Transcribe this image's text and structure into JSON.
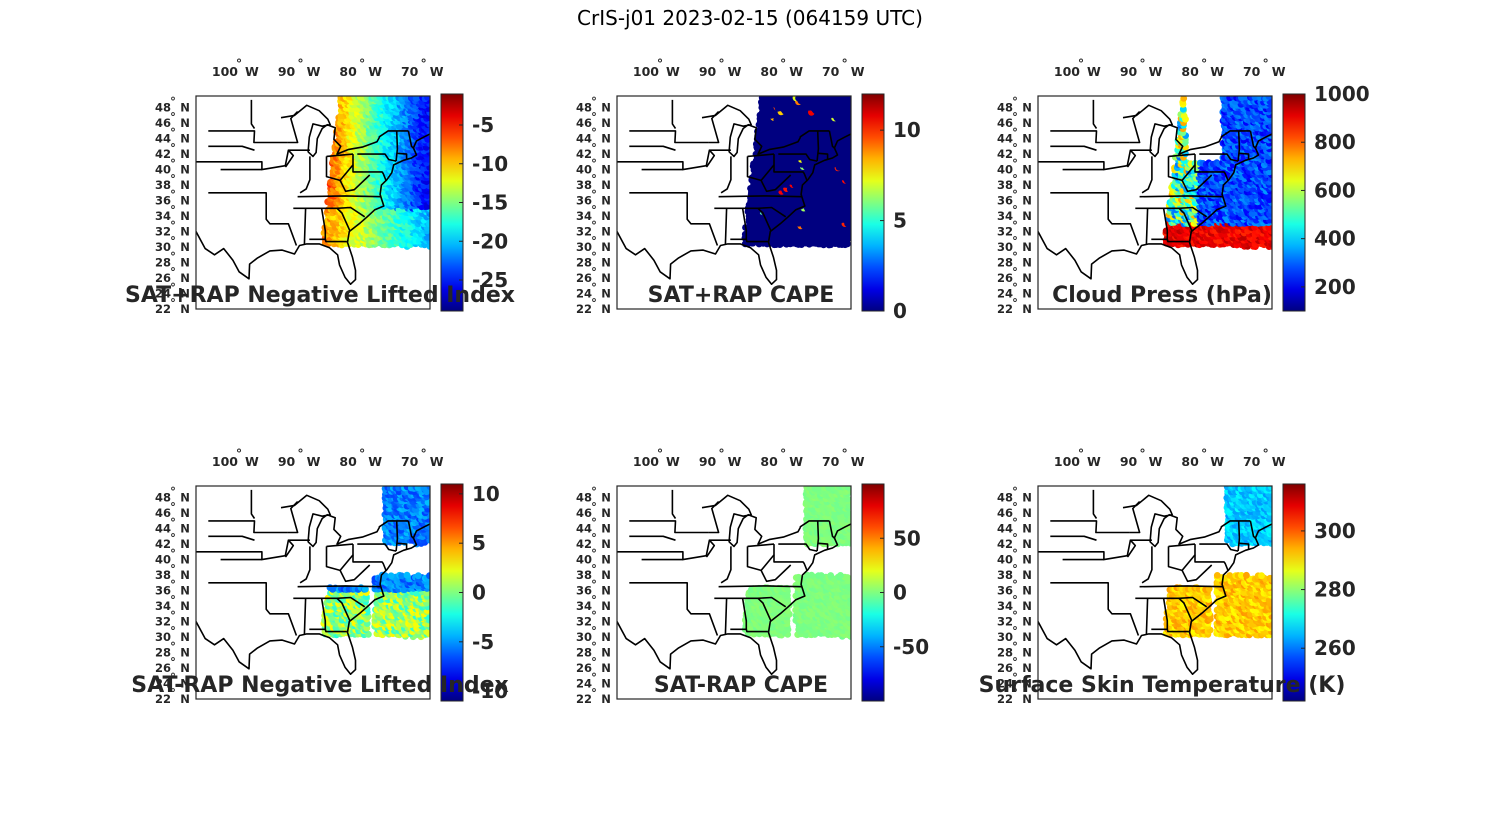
{
  "title": "CrIS-j01 2023-02-15 (064159 UTC)",
  "map_extent": {
    "lon": [
      -106,
      -68
    ],
    "lat": [
      22,
      49.5
    ]
  },
  "lon_labels": [
    "100",
    "90",
    "80",
    "70"
  ],
  "lon_values": [
    -100,
    -90,
    -80,
    -70
  ],
  "lat_labels": [
    "48",
    "46",
    "44",
    "42",
    "40",
    "38",
    "36",
    "34",
    "32",
    "30",
    "28",
    "26",
    "24",
    "22"
  ],
  "lat_values": [
    48,
    46,
    44,
    42,
    40,
    38,
    36,
    34,
    32,
    30,
    28,
    26,
    24,
    22
  ],
  "lon_suffix": "W",
  "lat_suffix": "N",
  "degree_mark": "°",
  "colormap": "jet",
  "panels": [
    {
      "id": "sat-rap-plus-li",
      "title": "SAT+RAP Negative Lifted Index",
      "colorbar": {
        "min": -29,
        "max": -1,
        "ticks": [
          -25,
          -20,
          -15,
          -10,
          -5
        ],
        "tick_labels": [
          "-25",
          "-20",
          "-15",
          "-10",
          "-5"
        ]
      },
      "field": "li_plus",
      "coverage": "swath"
    },
    {
      "id": "sat-rap-plus-cape",
      "title": "SAT+RAP CAPE",
      "colorbar": {
        "min": 0,
        "max": 12,
        "ticks": [
          0,
          5,
          10
        ],
        "tick_labels": [
          "0",
          "5",
          "10"
        ]
      },
      "field": "cape_plus",
      "coverage": "swath"
    },
    {
      "id": "cloud-press",
      "title": "Cloud Press (hPa)",
      "colorbar": {
        "min": 100,
        "max": 1000,
        "ticks": [
          200,
          400,
          600,
          800,
          1000
        ],
        "tick_labels": [
          "200",
          "400",
          "600",
          "800",
          "1000"
        ]
      },
      "field": "cloud_press",
      "coverage": "cloudy"
    },
    {
      "id": "sat-rap-minus-li",
      "title": "SAT-RAP Negative Lifted Index",
      "colorbar": {
        "min": -11,
        "max": 11,
        "ticks": [
          -10,
          -5,
          0,
          5,
          10
        ],
        "tick_labels": [
          "-10",
          "-5",
          "0",
          "5",
          "10"
        ]
      },
      "field": "li_minus",
      "coverage": "clear"
    },
    {
      "id": "sat-rap-minus-cape",
      "title": "SAT-RAP CAPE",
      "colorbar": {
        "min": -100,
        "max": 100,
        "ticks": [
          -50,
          0,
          50
        ],
        "tick_labels": [
          "-50",
          "0",
          "50"
        ]
      },
      "field": "cape_minus",
      "coverage": "clear"
    },
    {
      "id": "skin-temp",
      "title": "Surface Skin Temperature (K)",
      "colorbar": {
        "min": 242,
        "max": 316,
        "ticks": [
          260,
          280,
          300
        ],
        "tick_labels": [
          "260",
          "280",
          "300"
        ]
      },
      "field": "skin_temp",
      "coverage": "clear"
    }
  ],
  "colors": {
    "outline": "#000000",
    "text": "#262626",
    "background": "#ffffff"
  }
}
